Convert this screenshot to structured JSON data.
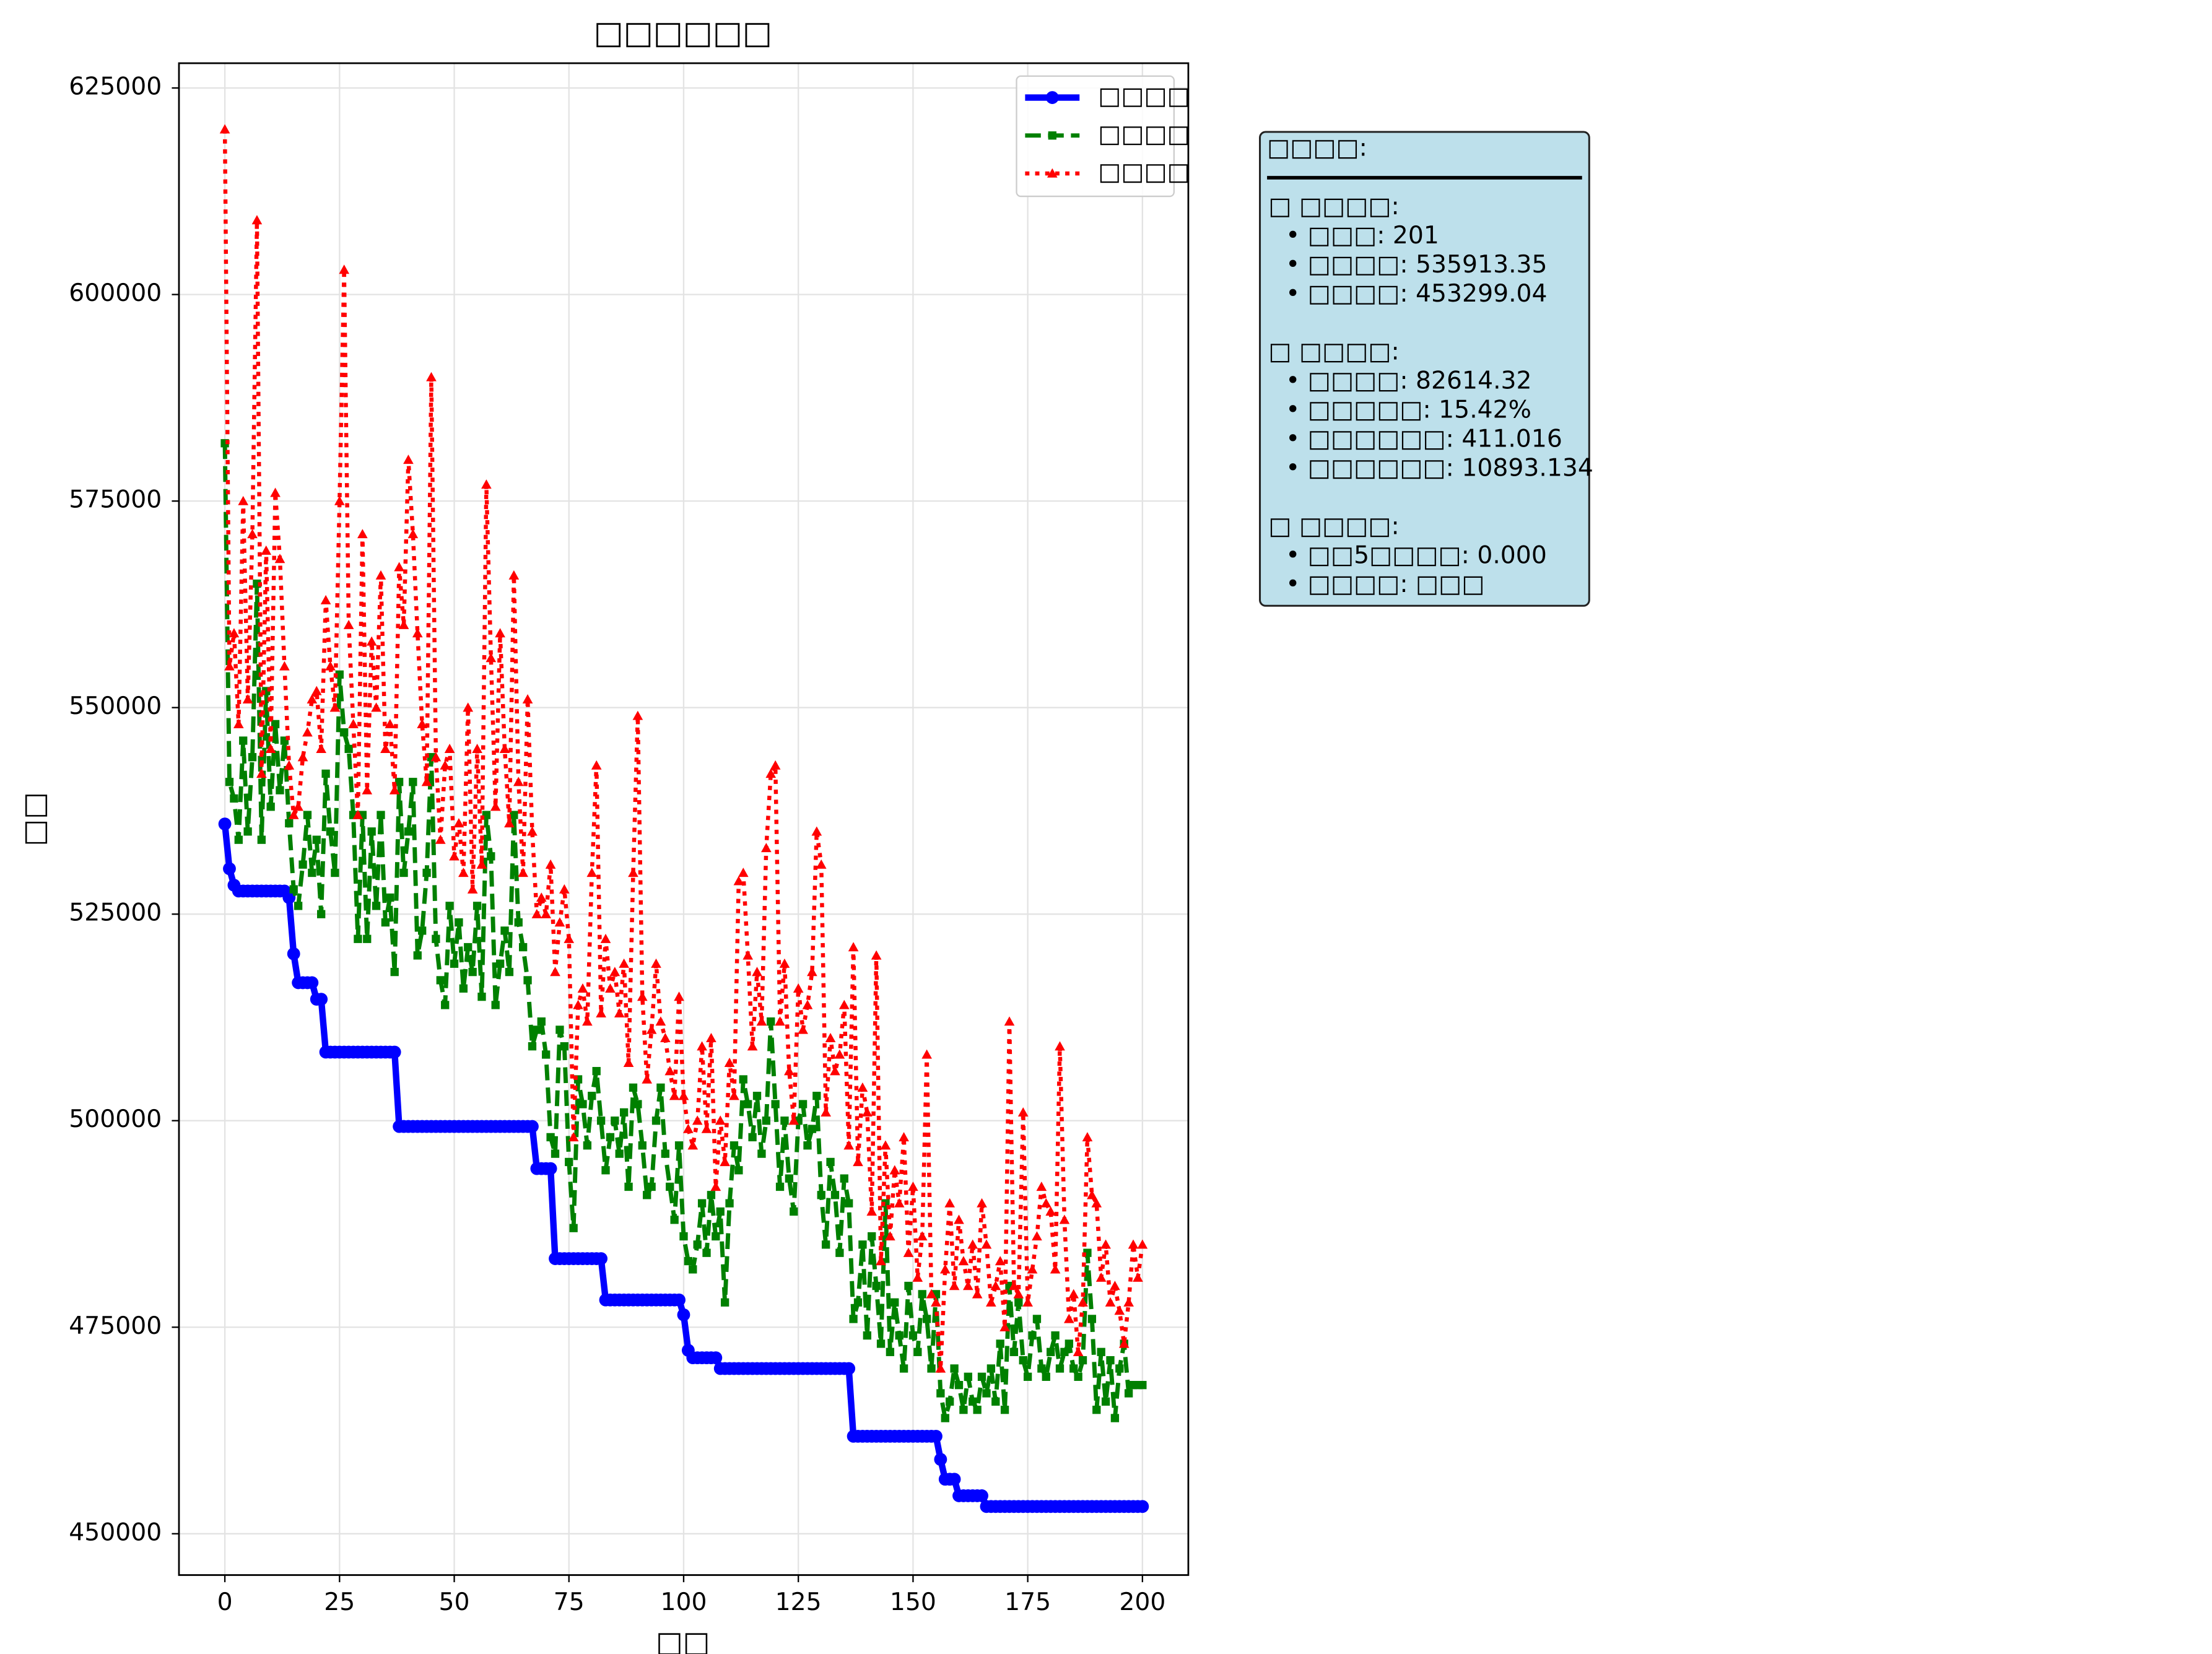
{
  "chart_data": {
    "type": "line",
    "title": "□□□□□□",
    "x_label": "□□",
    "y_label": "□□",
    "x": [
      0,
      1,
      2,
      3,
      4,
      5,
      6,
      7,
      8,
      9,
      10,
      11,
      12,
      13,
      14,
      15,
      16,
      17,
      18,
      19,
      20,
      21,
      22,
      23,
      24,
      25,
      26,
      27,
      28,
      29,
      30,
      31,
      32,
      33,
      34,
      35,
      36,
      37,
      38,
      39,
      40,
      41,
      42,
      43,
      44,
      45,
      46,
      47,
      48,
      49,
      50,
      51,
      52,
      53,
      54,
      55,
      56,
      57,
      58,
      59,
      60,
      61,
      62,
      63,
      64,
      65,
      66,
      67,
      68,
      69,
      70,
      71,
      72,
      73,
      74,
      75,
      76,
      77,
      78,
      79,
      80,
      81,
      82,
      83,
      84,
      85,
      86,
      87,
      88,
      89,
      90,
      91,
      92,
      93,
      94,
      95,
      96,
      97,
      98,
      99,
      100,
      101,
      102,
      103,
      104,
      105,
      106,
      107,
      108,
      109,
      110,
      111,
      112,
      113,
      114,
      115,
      116,
      117,
      118,
      119,
      120,
      121,
      122,
      123,
      124,
      125,
      126,
      127,
      128,
      129,
      130,
      131,
      132,
      133,
      134,
      135,
      136,
      137,
      138,
      139,
      140,
      141,
      142,
      143,
      144,
      145,
      146,
      147,
      148,
      149,
      150,
      151,
      152,
      153,
      154,
      155,
      156,
      157,
      158,
      159,
      160,
      161,
      162,
      163,
      164,
      165,
      166,
      167,
      168,
      169,
      170,
      171,
      172,
      173,
      174,
      175,
      176,
      177,
      178,
      179,
      180,
      181,
      182,
      183,
      184,
      185,
      186,
      187,
      188,
      189,
      190,
      191,
      192,
      193,
      194,
      195,
      196,
      197,
      198,
      199,
      200
    ],
    "series": [
      {
        "name": "□□□□",
        "color": "#0000ff",
        "style": "solid",
        "marker": "circle",
        "values": [
          535913,
          530500,
          528500,
          527800,
          527800,
          527800,
          527800,
          527800,
          527800,
          527800,
          527800,
          527800,
          527800,
          527800,
          527000,
          520200,
          516700,
          516700,
          516700,
          516700,
          514700,
          514700,
          508300,
          508300,
          508300,
          508300,
          508300,
          508300,
          508300,
          508300,
          508300,
          508300,
          508300,
          508300,
          508300,
          508300,
          508300,
          508300,
          499300,
          499300,
          499300,
          499300,
          499300,
          499300,
          499300,
          499300,
          499300,
          499300,
          499300,
          499300,
          499300,
          499300,
          499300,
          499300,
          499300,
          499300,
          499300,
          499300,
          499300,
          499300,
          499300,
          499300,
          499300,
          499300,
          499300,
          499300,
          499300,
          499300,
          494200,
          494200,
          494200,
          494200,
          483300,
          483300,
          483300,
          483300,
          483300,
          483300,
          483300,
          483300,
          483300,
          483300,
          483300,
          478300,
          478300,
          478300,
          478300,
          478300,
          478300,
          478300,
          478300,
          478300,
          478300,
          478300,
          478300,
          478300,
          478300,
          478300,
          478300,
          478300,
          476500,
          472200,
          471300,
          471300,
          471300,
          471300,
          471300,
          471300,
          470000,
          470000,
          470000,
          470000,
          470000,
          470000,
          470000,
          470000,
          470000,
          470000,
          470000,
          470000,
          470000,
          470000,
          470000,
          470000,
          470000,
          470000,
          470000,
          470000,
          470000,
          470000,
          470000,
          470000,
          470000,
          470000,
          470000,
          470000,
          470000,
          461800,
          461800,
          461800,
          461800,
          461800,
          461800,
          461800,
          461800,
          461800,
          461800,
          461800,
          461800,
          461800,
          461800,
          461800,
          461800,
          461800,
          461800,
          461800,
          459000,
          456600,
          456600,
          456600,
          454600,
          454600,
          454600,
          454600,
          454600,
          454600,
          453299,
          453299,
          453299,
          453299,
          453299,
          453299,
          453299,
          453299,
          453299,
          453299,
          453299,
          453299,
          453299,
          453299,
          453299,
          453299,
          453299,
          453299,
          453299,
          453299,
          453299,
          453299,
          453299,
          453299,
          453299,
          453299,
          453299,
          453299,
          453299,
          453299,
          453299,
          453299,
          453299,
          453299,
          453299
        ]
      },
      {
        "name": "□□□□",
        "color": "#008000",
        "style": "dashed",
        "marker": "square",
        "values": [
          582000,
          541000,
          539000,
          534000,
          546000,
          535000,
          544000,
          565000,
          534000,
          552000,
          538000,
          548000,
          540000,
          546000,
          536000,
          528000,
          526000,
          531000,
          537000,
          530000,
          534000,
          525000,
          542000,
          535000,
          530000,
          554000,
          547000,
          545000,
          537000,
          522000,
          537000,
          522000,
          535000,
          526000,
          537000,
          524000,
          527000,
          518000,
          541000,
          530000,
          535000,
          541000,
          520000,
          523000,
          530000,
          544000,
          522000,
          517000,
          514000,
          526000,
          519000,
          524000,
          516000,
          521000,
          518000,
          526000,
          515000,
          537000,
          532000,
          514000,
          519000,
          523000,
          518000,
          537000,
          524000,
          521000,
          517000,
          509000,
          511000,
          512000,
          508000,
          498000,
          496000,
          511000,
          509000,
          495000,
          487000,
          505000,
          502000,
          497000,
          503000,
          506000,
          500000,
          494000,
          498000,
          500000,
          496000,
          501000,
          492000,
          504000,
          502000,
          497000,
          491000,
          492000,
          500000,
          504000,
          496000,
          492000,
          488000,
          497000,
          486000,
          483000,
          482000,
          485000,
          490000,
          484000,
          491000,
          486000,
          489000,
          478000,
          490000,
          497000,
          494000,
          505000,
          502000,
          498000,
          503000,
          496000,
          500000,
          512000,
          502000,
          492000,
          500000,
          493000,
          489000,
          500000,
          502000,
          497000,
          499000,
          503000,
          491000,
          485000,
          495000,
          491000,
          484000,
          493000,
          490000,
          476000,
          478000,
          485000,
          474000,
          486000,
          480000,
          473000,
          490000,
          472000,
          478000,
          474000,
          470000,
          480000,
          474000,
          472000,
          479000,
          476000,
          470000,
          479000,
          467000,
          464000,
          466000,
          470000,
          468000,
          465000,
          469000,
          466000,
          465000,
          469000,
          467000,
          470000,
          466000,
          473000,
          465000,
          480000,
          472000,
          478000,
          471000,
          469000,
          474000,
          476000,
          470000,
          469000,
          472000,
          474000,
          470000,
          472000,
          473000,
          470000,
          469000,
          471000,
          484000,
          476000,
          465000,
          472000,
          466000,
          471000,
          464000,
          470000,
          473000,
          467000,
          468000,
          468000,
          468000
        ]
      },
      {
        "name": "□□□□",
        "color": "#ff0000",
        "style": "dotted",
        "marker": "triangle",
        "values": [
          620000,
          555000,
          559000,
          548000,
          575000,
          551000,
          571000,
          609000,
          542000,
          569000,
          545000,
          576000,
          568000,
          555000,
          543000,
          537000,
          538000,
          544000,
          547000,
          551000,
          552000,
          545000,
          563000,
          555000,
          550000,
          575000,
          603000,
          560000,
          548000,
          537000,
          571000,
          540000,
          558000,
          550000,
          566000,
          545000,
          548000,
          540000,
          567000,
          560000,
          580000,
          571000,
          559000,
          548000,
          541000,
          590000,
          544000,
          534000,
          543000,
          545000,
          532000,
          536000,
          530000,
          550000,
          528000,
          545000,
          531000,
          577000,
          556000,
          538000,
          559000,
          545000,
          536000,
          566000,
          541000,
          530000,
          551000,
          535000,
          525000,
          527000,
          525000,
          531000,
          518000,
          524000,
          528000,
          522000,
          498000,
          514000,
          516000,
          512000,
          530000,
          543000,
          513000,
          522000,
          516000,
          518000,
          513000,
          519000,
          507000,
          530000,
          549000,
          515000,
          505000,
          511000,
          519000,
          512000,
          510000,
          506000,
          503000,
          515000,
          503000,
          499000,
          497000,
          500000,
          509000,
          499000,
          510000,
          492000,
          500000,
          495000,
          507000,
          503000,
          529000,
          530000,
          520000,
          509000,
          518000,
          512000,
          533000,
          542000,
          543000,
          512000,
          519000,
          506000,
          500000,
          516000,
          511000,
          514000,
          518000,
          535000,
          531000,
          501000,
          510000,
          506000,
          508000,
          514000,
          497000,
          521000,
          495000,
          504000,
          501000,
          489000,
          520000,
          483000,
          497000,
          486000,
          494000,
          490000,
          498000,
          484000,
          492000,
          481000,
          486000,
          508000,
          479000,
          478000,
          470000,
          482000,
          490000,
          480000,
          488000,
          483000,
          480000,
          485000,
          479000,
          490000,
          485000,
          478000,
          480000,
          483000,
          475000,
          512000,
          480000,
          479000,
          501000,
          478000,
          482000,
          486000,
          492000,
          490000,
          489000,
          482000,
          509000,
          488000,
          476000,
          479000,
          472000,
          478000,
          498000,
          491000,
          490000,
          481000,
          485000,
          478000,
          480000,
          477000,
          473000,
          478000,
          485000,
          481000,
          485000
        ]
      }
    ],
    "xlim": [
      -10,
      210
    ],
    "xticks": [
      0,
      25,
      50,
      75,
      100,
      125,
      150,
      175,
      200
    ],
    "ylim": [
      445000,
      628000
    ],
    "yticks": [
      450000,
      475000,
      500000,
      525000,
      550000,
      575000,
      600000,
      625000
    ],
    "grid": true,
    "legend": "upper right",
    "stats_box": {
      "title": "□□□□:",
      "sections": [
        {
          "heading": "□ □□□□:",
          "lines": [
            "• □□□: 201",
            "• □□□□: 535913.35",
            "• □□□□: 453299.04"
          ]
        },
        {
          "heading": "□ □□□□:",
          "lines": [
            "• □□□□: 82614.32",
            "• □□□□□: 15.42%",
            "• □□□□□□: 411.016",
            "• □□□□□□: 10893.134"
          ]
        },
        {
          "heading": "□ □□□□:",
          "lines": [
            "• □□5□□□□: 0.000",
            "• □□□□: □□□"
          ]
        }
      ]
    }
  }
}
